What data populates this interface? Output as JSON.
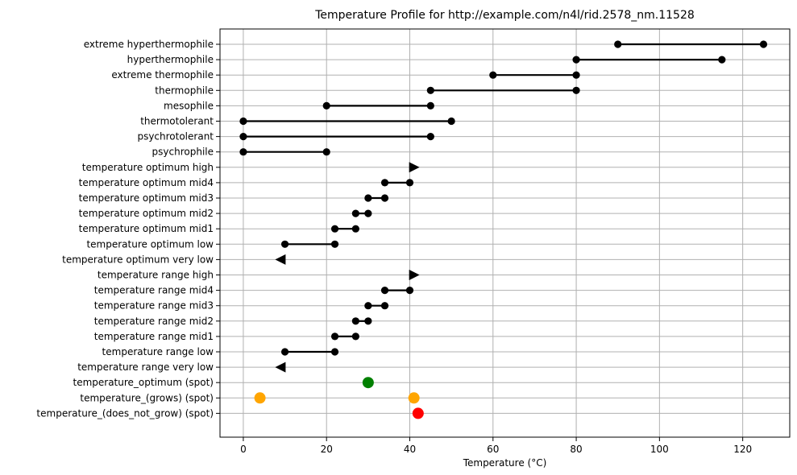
{
  "chart_data": {
    "type": "range-dot",
    "title": "Temperature Profile for http://example.com/n4l/rid.2578_nm.11528",
    "xlabel": "Temperature (°C)",
    "ylabel": "",
    "xlim": [
      -5.6,
      131.3
    ],
    "xticks": [
      0,
      20,
      40,
      60,
      80,
      100,
      120
    ],
    "grid": true,
    "categories": [
      "extreme hyperthermophile",
      "hyperthermophile",
      "extreme thermophile",
      "thermophile",
      "mesophile",
      "thermotolerant",
      "psychrotolerant",
      "psychrophile",
      "temperature optimum high",
      "temperature optimum mid4",
      "temperature optimum mid3",
      "temperature optimum mid2",
      "temperature optimum mid1",
      "temperature optimum low",
      "temperature optimum very low",
      "temperature range high",
      "temperature range mid4",
      "temperature range mid3",
      "temperature range mid2",
      "temperature range mid1",
      "temperature range low",
      "temperature range very low",
      "temperature_optimum (spot)",
      "temperature_(grows) (spot)",
      "temperature_(does_not_grow) (spot)"
    ],
    "ranges": [
      {
        "category": "extreme hyperthermophile",
        "start": 90,
        "end": 125
      },
      {
        "category": "hyperthermophile",
        "start": 80,
        "end": 115
      },
      {
        "category": "extreme thermophile",
        "start": 60,
        "end": 80
      },
      {
        "category": "thermophile",
        "start": 45,
        "end": 80
      },
      {
        "category": "mesophile",
        "start": 20,
        "end": 45
      },
      {
        "category": "thermotolerant",
        "start": 0,
        "end": 50
      },
      {
        "category": "psychrotolerant",
        "start": 0,
        "end": 45
      },
      {
        "category": "psychrophile",
        "start": 0,
        "end": 20
      },
      {
        "category": "temperature optimum mid4",
        "start": 34,
        "end": 40
      },
      {
        "category": "temperature optimum mid3",
        "start": 30,
        "end": 34
      },
      {
        "category": "temperature optimum mid2",
        "start": 27,
        "end": 30
      },
      {
        "category": "temperature optimum mid1",
        "start": 22,
        "end": 27
      },
      {
        "category": "temperature optimum low",
        "start": 10,
        "end": 22
      },
      {
        "category": "temperature range mid4",
        "start": 34,
        "end": 40
      },
      {
        "category": "temperature range mid3",
        "start": 30,
        "end": 34
      },
      {
        "category": "temperature range mid2",
        "start": 27,
        "end": 30
      },
      {
        "category": "temperature range mid1",
        "start": 22,
        "end": 27
      },
      {
        "category": "temperature range low",
        "start": 10,
        "end": 22
      }
    ],
    "arrows": [
      {
        "category": "temperature optimum high",
        "value": 41,
        "direction": "right"
      },
      {
        "category": "temperature optimum very low",
        "value": 9,
        "direction": "left"
      },
      {
        "category": "temperature range high",
        "value": 41,
        "direction": "right"
      },
      {
        "category": "temperature range very low",
        "value": 9,
        "direction": "left"
      }
    ],
    "spots": [
      {
        "category": "temperature_optimum (spot)",
        "value": 30,
        "color": "#008000"
      },
      {
        "category": "temperature_(grows) (spot)",
        "value": 4,
        "color": "#ffa500"
      },
      {
        "category": "temperature_(grows) (spot)",
        "value": 41,
        "color": "#ffa500"
      },
      {
        "category": "temperature_(does_not_grow) (spot)",
        "value": 42,
        "color": "#ff0000"
      }
    ],
    "colors": {
      "range": "#000000",
      "grid": "#b0b0b0"
    }
  }
}
